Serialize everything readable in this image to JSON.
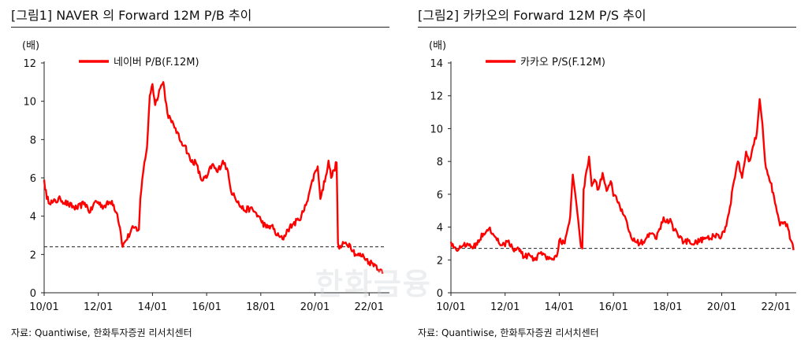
{
  "watermark": "한화금융",
  "chart_data": [
    {
      "type": "line",
      "title": "[그림1]    NAVER 의 Forward 12M P/B 추이",
      "ylabel": "(배)",
      "ylim": [
        0,
        12
      ],
      "yticks": [
        0,
        2,
        4,
        6,
        8,
        10,
        12
      ],
      "xlim": [
        2010.0,
        2022.75
      ],
      "xticks": [
        {
          "label": "10/01",
          "t": 2010.0
        },
        {
          "label": "12/01",
          "t": 2012.0
        },
        {
          "label": "14/01",
          "t": 2014.0
        },
        {
          "label": "16/01",
          "t": 2016.0
        },
        {
          "label": "18/01",
          "t": 2018.0
        },
        {
          "label": "20/01",
          "t": 2020.0
        },
        {
          "label": "22/01",
          "t": 2022.0
        }
      ],
      "reference_line": 2.4,
      "color": "#ff0000",
      "legend": "top-left",
      "source": "자료: Quantiwise, 한화투자증권 리서치센터",
      "series": [
        {
          "name": "네이버 P/B(F.12M)",
          "points": [
            [
              2010.0,
              5.9
            ],
            [
              2010.1,
              4.9
            ],
            [
              2010.3,
              4.7
            ],
            [
              2010.6,
              4.9
            ],
            [
              2010.9,
              4.6
            ],
            [
              2011.2,
              4.4
            ],
            [
              2011.5,
              4.7
            ],
            [
              2011.7,
              4.2
            ],
            [
              2011.9,
              4.8
            ],
            [
              2012.2,
              4.5
            ],
            [
              2012.5,
              4.8
            ],
            [
              2012.7,
              4.1
            ],
            [
              2012.8,
              3.4
            ],
            [
              2012.9,
              2.4
            ],
            [
              2013.0,
              2.7
            ],
            [
              2013.3,
              3.4
            ],
            [
              2013.5,
              3.3
            ],
            [
              2013.55,
              4.9
            ],
            [
              2013.7,
              6.8
            ],
            [
              2013.8,
              7.6
            ],
            [
              2013.9,
              10.3
            ],
            [
              2014.0,
              10.9
            ],
            [
              2014.1,
              9.8
            ],
            [
              2014.25,
              10.6
            ],
            [
              2014.4,
              11.0
            ],
            [
              2014.55,
              9.4
            ],
            [
              2014.7,
              8.9
            ],
            [
              2014.85,
              8.6
            ],
            [
              2015.0,
              8.0
            ],
            [
              2015.2,
              7.7
            ],
            [
              2015.4,
              6.9
            ],
            [
              2015.6,
              6.8
            ],
            [
              2015.8,
              5.9
            ],
            [
              2016.0,
              6.0
            ],
            [
              2016.2,
              6.7
            ],
            [
              2016.4,
              6.3
            ],
            [
              2016.6,
              6.9
            ],
            [
              2016.75,
              6.5
            ],
            [
              2016.9,
              5.3
            ],
            [
              2017.0,
              5.2
            ],
            [
              2017.2,
              4.6
            ],
            [
              2017.4,
              4.3
            ],
            [
              2017.6,
              4.4
            ],
            [
              2017.8,
              4.2
            ],
            [
              2018.0,
              3.8
            ],
            [
              2018.2,
              3.4
            ],
            [
              2018.4,
              3.5
            ],
            [
              2018.6,
              3.0
            ],
            [
              2018.8,
              2.8
            ],
            [
              2019.0,
              3.3
            ],
            [
              2019.2,
              3.6
            ],
            [
              2019.4,
              3.8
            ],
            [
              2019.6,
              4.3
            ],
            [
              2019.8,
              5.3
            ],
            [
              2020.0,
              6.3
            ],
            [
              2020.1,
              6.6
            ],
            [
              2020.2,
              4.9
            ],
            [
              2020.4,
              6.1
            ],
            [
              2020.5,
              6.9
            ],
            [
              2020.6,
              6.0
            ],
            [
              2020.7,
              6.4
            ],
            [
              2020.8,
              6.8
            ],
            [
              2020.85,
              2.6
            ],
            [
              2020.9,
              2.3
            ],
            [
              2021.1,
              2.6
            ],
            [
              2021.3,
              2.5
            ],
            [
              2021.5,
              2.0
            ],
            [
              2021.8,
              1.9
            ],
            [
              2022.0,
              1.6
            ],
            [
              2022.2,
              1.5
            ],
            [
              2022.4,
              1.2
            ],
            [
              2022.5,
              1.0
            ]
          ]
        }
      ]
    },
    {
      "type": "line",
      "title": "[그림2]    카카오의 Forward 12M P/S 추이",
      "ylabel": "(배)",
      "ylim": [
        0,
        14
      ],
      "yticks": [
        0,
        2,
        4,
        6,
        8,
        10,
        12,
        14
      ],
      "xlim": [
        2010.0,
        2022.75
      ],
      "xticks": [
        {
          "label": "10/01",
          "t": 2010.0
        },
        {
          "label": "12/01",
          "t": 2012.0
        },
        {
          "label": "14/01",
          "t": 2014.0
        },
        {
          "label": "16/01",
          "t": 2016.0
        },
        {
          "label": "18/01",
          "t": 2018.0
        },
        {
          "label": "20/01",
          "t": 2020.0
        },
        {
          "label": "22/01",
          "t": 2022.0
        }
      ],
      "reference_line": 2.7,
      "color": "#ff0000",
      "legend": "top-left",
      "source": "자료: Quantiwise, 한화투자증권 리서치센터",
      "series": [
        {
          "name": "카카오 P/S(F.12M)",
          "points": [
            [
              2010.0,
              3.1
            ],
            [
              2010.2,
              2.6
            ],
            [
              2010.4,
              2.8
            ],
            [
              2010.6,
              3.0
            ],
            [
              2010.8,
              2.7
            ],
            [
              2011.0,
              3.2
            ],
            [
              2011.2,
              3.6
            ],
            [
              2011.4,
              3.9
            ],
            [
              2011.55,
              3.6
            ],
            [
              2011.7,
              3.2
            ],
            [
              2011.9,
              2.9
            ],
            [
              2012.1,
              3.1
            ],
            [
              2012.3,
              2.6
            ],
            [
              2012.5,
              2.7
            ],
            [
              2012.7,
              2.2
            ],
            [
              2012.9,
              2.3
            ],
            [
              2013.1,
              2.0
            ],
            [
              2013.3,
              2.4
            ],
            [
              2013.5,
              2.2
            ],
            [
              2013.7,
              2.1
            ],
            [
              2013.9,
              2.2
            ],
            [
              2014.0,
              3.2
            ],
            [
              2014.2,
              3.0
            ],
            [
              2014.4,
              4.6
            ],
            [
              2014.5,
              7.2
            ],
            [
              2014.6,
              5.9
            ],
            [
              2014.7,
              4.4
            ],
            [
              2014.8,
              2.8
            ],
            [
              2014.85,
              2.7
            ],
            [
              2014.9,
              6.3
            ],
            [
              2015.0,
              7.4
            ],
            [
              2015.1,
              8.3
            ],
            [
              2015.2,
              6.5
            ],
            [
              2015.3,
              6.9
            ],
            [
              2015.45,
              6.3
            ],
            [
              2015.6,
              7.3
            ],
            [
              2015.75,
              6.2
            ],
            [
              2015.9,
              6.8
            ],
            [
              2016.0,
              5.9
            ],
            [
              2016.2,
              5.5
            ],
            [
              2016.35,
              4.8
            ],
            [
              2016.5,
              4.3
            ],
            [
              2016.65,
              3.4
            ],
            [
              2016.8,
              3.1
            ],
            [
              2017.0,
              3.0
            ],
            [
              2017.2,
              3.3
            ],
            [
              2017.4,
              3.6
            ],
            [
              2017.55,
              3.3
            ],
            [
              2017.7,
              3.9
            ],
            [
              2017.85,
              4.6
            ],
            [
              2017.95,
              4.3
            ],
            [
              2018.1,
              4.5
            ],
            [
              2018.25,
              3.8
            ],
            [
              2018.4,
              3.4
            ],
            [
              2018.6,
              3.1
            ],
            [
              2018.8,
              3.2
            ],
            [
              2019.0,
              3.0
            ],
            [
              2019.2,
              3.2
            ],
            [
              2019.4,
              3.3
            ],
            [
              2019.6,
              3.3
            ],
            [
              2019.8,
              3.6
            ],
            [
              2019.95,
              3.3
            ],
            [
              2020.1,
              3.7
            ],
            [
              2020.3,
              5.2
            ],
            [
              2020.45,
              6.8
            ],
            [
              2020.6,
              8.0
            ],
            [
              2020.75,
              7.0
            ],
            [
              2020.9,
              8.6
            ],
            [
              2021.0,
              8.0
            ],
            [
              2021.15,
              8.9
            ],
            [
              2021.3,
              9.8
            ],
            [
              2021.4,
              11.8
            ],
            [
              2021.5,
              10.3
            ],
            [
              2021.6,
              8.0
            ],
            [
              2021.7,
              7.2
            ],
            [
              2021.8,
              6.7
            ],
            [
              2021.9,
              6.1
            ],
            [
              2022.0,
              5.3
            ],
            [
              2022.15,
              4.1
            ],
            [
              2022.3,
              4.3
            ],
            [
              2022.45,
              3.9
            ],
            [
              2022.55,
              3.2
            ],
            [
              2022.65,
              2.6
            ]
          ]
        }
      ]
    }
  ]
}
